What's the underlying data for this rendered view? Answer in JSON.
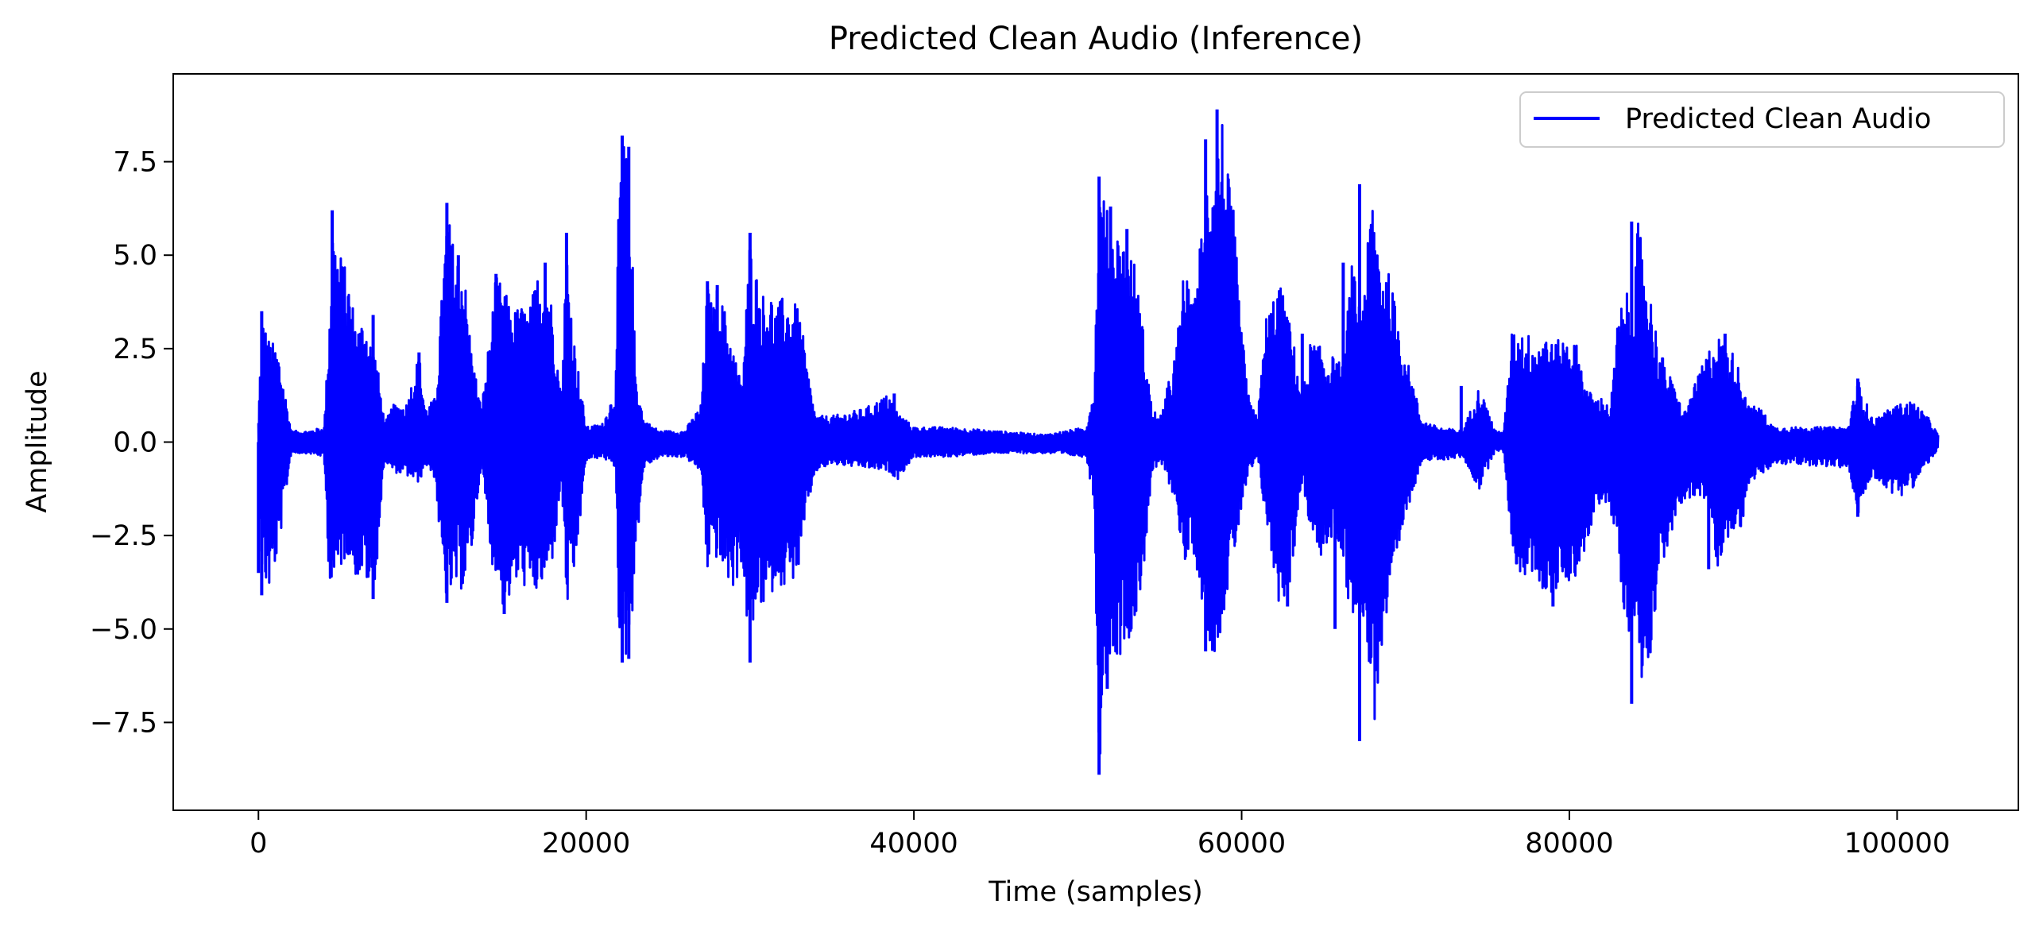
{
  "chart_data": {
    "type": "line",
    "title": "Predicted Clean Audio (Inference)",
    "xlabel": "Time (samples)",
    "ylabel": "Amplitude",
    "xlim": [
      -5200,
      107400
    ],
    "ylim": [
      -9.85,
      9.85
    ],
    "xticks": [
      0,
      20000,
      40000,
      60000,
      80000,
      100000
    ],
    "xtick_labels": [
      "0",
      "20000",
      "40000",
      "60000",
      "80000",
      "100000"
    ],
    "yticks": [
      -7.5,
      -5.0,
      -2.5,
      0.0,
      2.5,
      5.0,
      7.5
    ],
    "ytick_labels": [
      "−7.5",
      "−5.0",
      "−2.5",
      "0.0",
      "2.5",
      "5.0",
      "7.5"
    ],
    "grid": false,
    "legend_position": "top-right",
    "line_color": "#0000ff",
    "series": [
      {
        "name": "Predicted Clean Audio",
        "color": "#0000ff",
        "envelope_x": [
          0,
          200,
          600,
          1200,
          2000,
          3000,
          4000,
          4300,
          4500,
          4700,
          5000,
          5500,
          6000,
          6500,
          6800,
          7200,
          7700,
          8200,
          9000,
          9800,
          10200,
          10800,
          11200,
          11500,
          11800,
          12200,
          12500,
          13000,
          13600,
          14200,
          14500,
          15000,
          15500,
          16000,
          16500,
          17000,
          17500,
          18000,
          18500,
          18800,
          19200,
          20000,
          21000,
          21800,
          22000,
          22200,
          22500,
          22800,
          23000,
          23500,
          24500,
          26000,
          27000,
          27400,
          27700,
          28000,
          28500,
          29000,
          29500,
          30000,
          30500,
          30900,
          31200,
          31600,
          32000,
          32500,
          33000,
          33500,
          34000,
          35000,
          37000,
          38500,
          39000,
          40000,
          42000,
          45000,
          48000,
          50500,
          51000,
          51300,
          51600,
          52000,
          52500,
          53000,
          53500,
          54000,
          54500,
          55000,
          56000,
          56500,
          57000,
          57500,
          57800,
          58200,
          58500,
          58800,
          59100,
          59500,
          60000,
          60500,
          61000,
          61500,
          62000,
          62300,
          62800,
          63200,
          63700,
          64200,
          64700,
          65200,
          65700,
          66200,
          66700,
          67200,
          67600,
          68000,
          68500,
          69000,
          70000,
          71000,
          72000,
          73500,
          74500,
          75500,
          76000,
          76500,
          77000,
          77500,
          78000,
          78500,
          79000,
          79500,
          80000,
          80500,
          81000,
          81500,
          82000,
          82500,
          83000,
          83500,
          83800,
          84200,
          84600,
          85500,
          87000,
          88500,
          89000,
          89500,
          90000,
          90500,
          91000,
          91500,
          92500,
          94000,
          97000,
          97600,
          98500,
          100000,
          101000,
          102000,
          102500
        ],
        "envelope_top": [
          0.6,
          3.5,
          2.8,
          2.5,
          0.3,
          0.3,
          0.4,
          3.0,
          6.2,
          5.5,
          5.1,
          4.4,
          3.1,
          3.4,
          2.8,
          2.3,
          0.5,
          1.0,
          1.0,
          2.4,
          0.9,
          1.2,
          4.0,
          6.4,
          5.5,
          5.0,
          4.9,
          2.5,
          0.9,
          3.2,
          4.5,
          4.1,
          3.5,
          3.7,
          3.5,
          4.5,
          4.8,
          3.5,
          1.0,
          5.6,
          3.0,
          0.4,
          0.5,
          1.5,
          7.0,
          8.2,
          7.9,
          5.5,
          2.0,
          0.6,
          0.3,
          0.3,
          1.0,
          4.3,
          3.6,
          4.2,
          3.5,
          2.5,
          1.5,
          5.6,
          4.3,
          3.9,
          4.1,
          3.6,
          3.9,
          3.8,
          3.6,
          2.0,
          0.7,
          0.7,
          0.9,
          1.3,
          0.8,
          0.4,
          0.4,
          0.3,
          0.2,
          0.4,
          1.5,
          7.1,
          6.6,
          5.8,
          5.7,
          5.3,
          4.8,
          3.0,
          1.0,
          0.6,
          2.5,
          4.8,
          3.5,
          5.5,
          7.2,
          8.1,
          8.0,
          8.9,
          7.4,
          6.2,
          3.0,
          1.0,
          0.8,
          3.4,
          4.0,
          4.3,
          3.5,
          2.6,
          1.2,
          2.7,
          2.6,
          2.3,
          2.3,
          2.0,
          4.8,
          3.8,
          4.8,
          6.9,
          5.0,
          4.5,
          2.4,
          0.6,
          0.4,
          0.3,
          1.5,
          0.3,
          0.3,
          3.0,
          3.0,
          2.9,
          2.7,
          3.0,
          2.6,
          2.8,
          2.8,
          2.6,
          1.5,
          1.2,
          1.2,
          0.9,
          3.5,
          4.0,
          3.4,
          5.9,
          4.9,
          2.5,
          0.8,
          2.5,
          2.9,
          2.6,
          2.4,
          1.8,
          0.9,
          1.0,
          0.4,
          0.4,
          0.4,
          1.7,
          0.6,
          1.0,
          1.1,
          0.6,
          0.2
        ],
        "envelope_bottom": [
          -0.6,
          -3.5,
          -4.1,
          -3.0,
          -0.3,
          -0.3,
          -0.4,
          -3.5,
          -4.0,
          -3.8,
          -3.4,
          -3.0,
          -3.7,
          -3.5,
          -4.2,
          -3.5,
          -0.5,
          -0.8,
          -0.9,
          -1.1,
          -0.6,
          -1.0,
          -3.5,
          -4.3,
          -4.1,
          -3.9,
          -4.0,
          -3.0,
          -0.6,
          -3.2,
          -3.5,
          -4.6,
          -4.0,
          -3.7,
          -4.1,
          -4.1,
          -3.8,
          -3.1,
          -1.0,
          -4.5,
          -4.0,
          -0.5,
          -0.4,
          -0.7,
          -5.0,
          -5.9,
          -5.8,
          -4.7,
          -3.2,
          -0.7,
          -0.4,
          -0.4,
          -0.8,
          -3.5,
          -2.8,
          -3.2,
          -3.6,
          -4.0,
          -3.2,
          -5.9,
          -4.2,
          -4.6,
          -4.3,
          -3.6,
          -3.9,
          -3.8,
          -3.4,
          -1.8,
          -0.8,
          -0.6,
          -0.7,
          -0.8,
          -1.0,
          -0.4,
          -0.4,
          -0.3,
          -0.3,
          -0.4,
          -1.6,
          -8.9,
          -6.6,
          -5.6,
          -5.8,
          -5.3,
          -5.0,
          -3.5,
          -1.0,
          -0.5,
          -1.6,
          -3.5,
          -2.8,
          -4.0,
          -5.0,
          -5.6,
          -5.6,
          -4.9,
          -4.1,
          -3.2,
          -1.8,
          -0.8,
          -0.5,
          -2.2,
          -3.6,
          -4.4,
          -4.2,
          -3.0,
          -1.0,
          -2.5,
          -3.1,
          -3.0,
          -2.4,
          -3.2,
          -5.0,
          -4.2,
          -5.1,
          -8.0,
          -5.8,
          -4.7,
          -2.0,
          -0.5,
          -0.5,
          -0.4,
          -1.3,
          -0.2,
          -0.3,
          -2.8,
          -3.8,
          -3.5,
          -3.6,
          -4.1,
          -4.4,
          -3.6,
          -3.8,
          -3.5,
          -2.9,
          -2.1,
          -1.5,
          -1.8,
          -3.2,
          -5.1,
          -5.0,
          -5.6,
          -7.0,
          -3.5,
          -1.5,
          -1.6,
          -3.4,
          -2.7,
          -2.4,
          -2.3,
          -1.0,
          -1.0,
          -0.6,
          -0.6,
          -0.7,
          -2.0,
          -0.9,
          -1.5,
          -1.2,
          -0.5,
          -0.2
        ],
        "spikes_up": [
          [
            200,
            3.5
          ],
          [
            4500,
            6.2
          ],
          [
            7000,
            3.4
          ],
          [
            9800,
            2.4
          ],
          [
            11500,
            6.4
          ],
          [
            12200,
            5.0
          ],
          [
            14500,
            4.5
          ],
          [
            17500,
            4.8
          ],
          [
            18800,
            5.6
          ],
          [
            22200,
            8.2
          ],
          [
            22600,
            7.9
          ],
          [
            27400,
            4.3
          ],
          [
            28000,
            4.2
          ],
          [
            30000,
            5.6
          ],
          [
            38800,
            1.3
          ],
          [
            51300,
            7.1
          ],
          [
            52000,
            6.3
          ],
          [
            53000,
            5.7
          ],
          [
            57800,
            8.1
          ],
          [
            58500,
            8.9
          ],
          [
            63700,
            2.9
          ],
          [
            66200,
            4.8
          ],
          [
            67200,
            6.9
          ],
          [
            73400,
            1.5
          ],
          [
            83800,
            5.9
          ],
          [
            89500,
            2.9
          ],
          [
            97600,
            1.7
          ]
        ],
        "spikes_down": [
          [
            0,
            -3.5
          ],
          [
            200,
            -4.1
          ],
          [
            7000,
            -4.2
          ],
          [
            11500,
            -4.3
          ],
          [
            15000,
            -4.6
          ],
          [
            22200,
            -5.9
          ],
          [
            22600,
            -5.8
          ],
          [
            30000,
            -5.9
          ],
          [
            51300,
            -8.9
          ],
          [
            51800,
            -6.6
          ],
          [
            57800,
            -5.6
          ],
          [
            62800,
            -4.4
          ],
          [
            65700,
            -5.0
          ],
          [
            67200,
            -8.0
          ],
          [
            79000,
            -4.4
          ],
          [
            83800,
            -7.0
          ],
          [
            88500,
            -3.4
          ],
          [
            97600,
            -2.0
          ]
        ]
      }
    ]
  }
}
